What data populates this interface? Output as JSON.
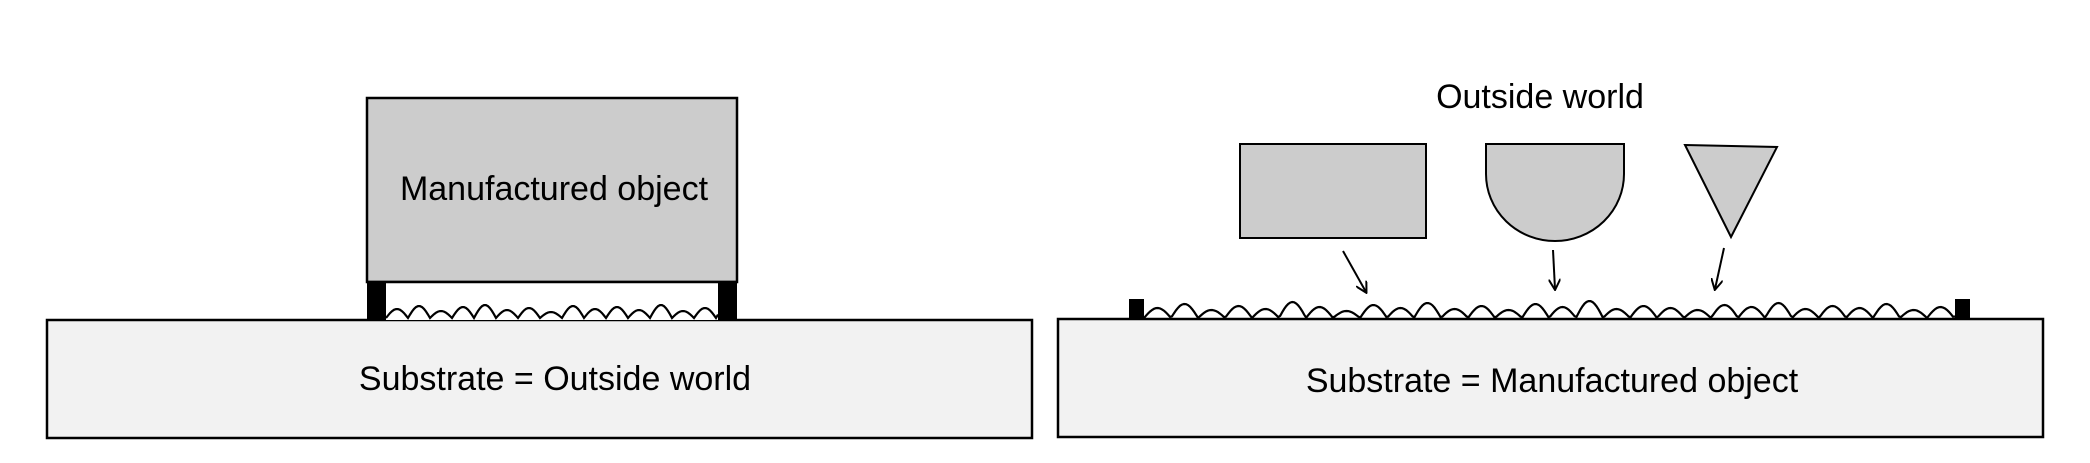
{
  "left_panel": {
    "object_label": "Manufactured object",
    "substrate_label": "Substrate = Outside world"
  },
  "right_panel": {
    "outside_label": "Outside world",
    "substrate_label": "Substrate = Manufactured object",
    "shapes": [
      "rectangle",
      "half-disc",
      "triangle"
    ]
  },
  "colors": {
    "object_fill": "#cccccc",
    "substrate_fill": "#f2f2f2",
    "stroke": "#000000"
  }
}
